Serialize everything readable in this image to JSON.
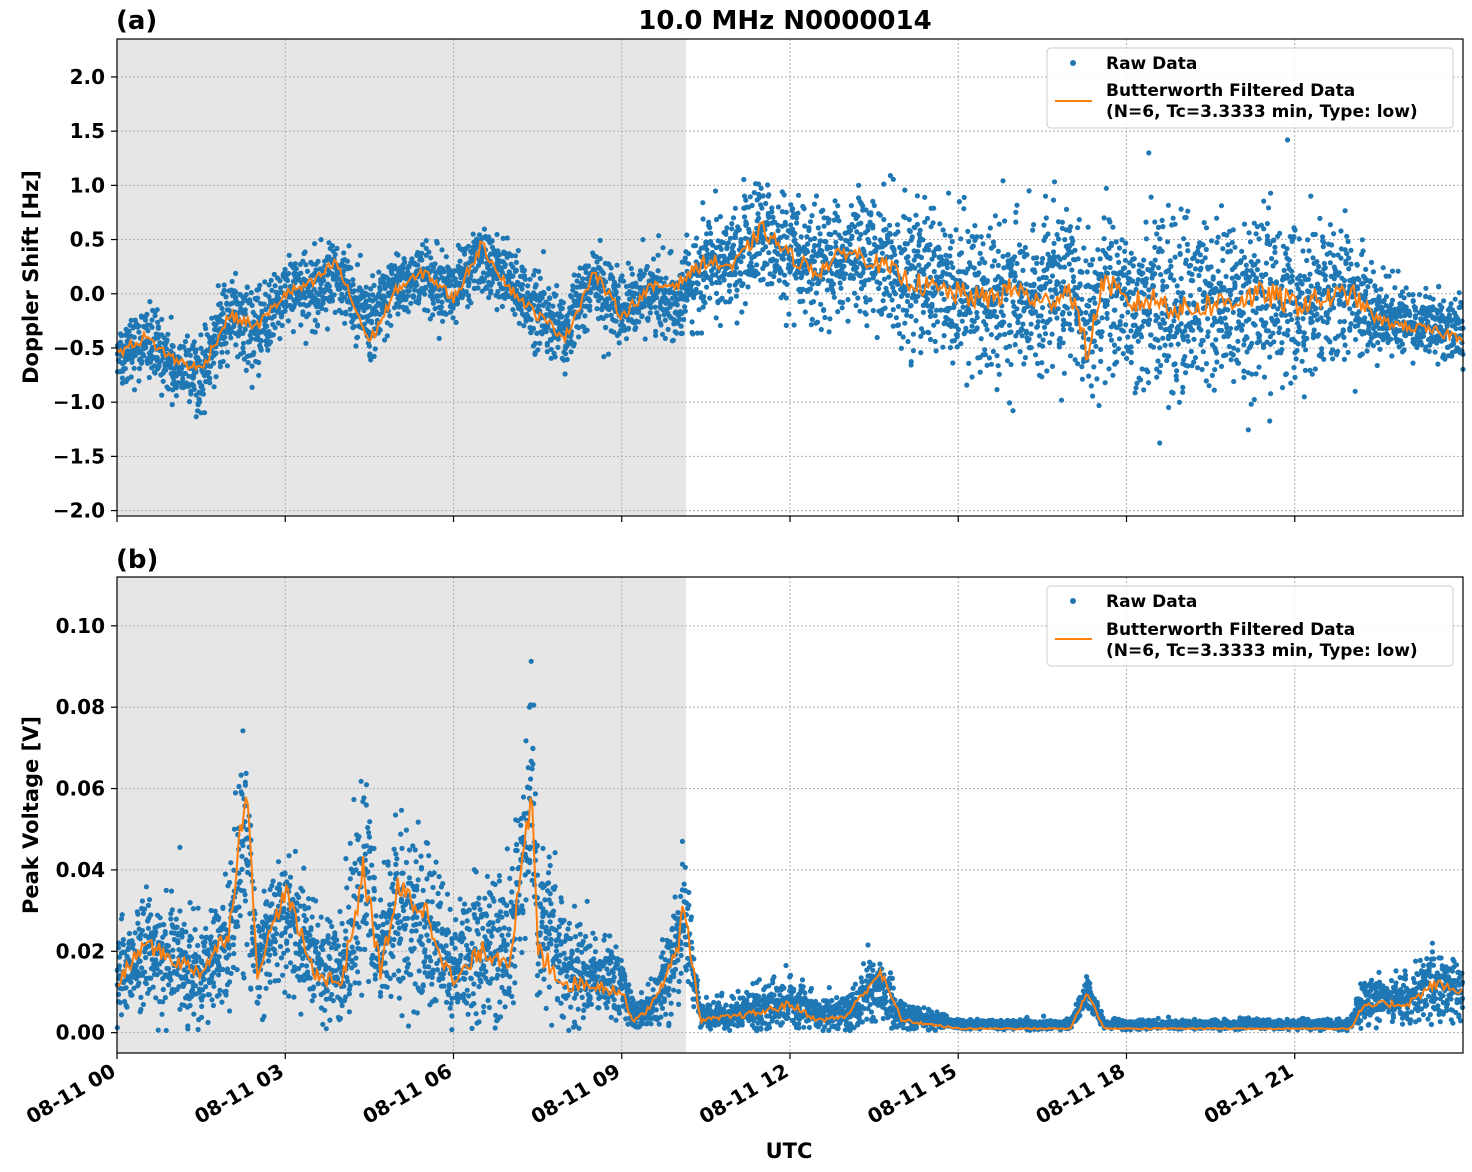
{
  "figure": {
    "title": "10.0 MHz N0000014",
    "xlabel": "UTC",
    "x_tick_labels": [
      "08-11 00",
      "08-11 03",
      "08-11 06",
      "08-11 09",
      "08-11 12",
      "08-11 15",
      "08-11 18",
      "08-11 21"
    ],
    "x_range_hours": [
      0,
      24
    ],
    "shaded_region_hours": [
      0,
      10.1
    ],
    "colors": {
      "raw": "#1f77b4",
      "filtered": "#ff7f0e",
      "shading": "#e6e6e6",
      "grid": "#b0b0b0"
    }
  },
  "chart_data": [
    {
      "type": "scatter",
      "panel_label": "(a)",
      "ylabel": "Doppler Shift [Hz]",
      "ylim": [
        -2.05,
        2.35
      ],
      "y_ticks": [
        -2.0,
        -1.5,
        -1.0,
        -0.5,
        0.0,
        0.5,
        1.0,
        1.5,
        2.0
      ],
      "y_tick_labels": [
        "−2.0",
        "−1.5",
        "−1.0",
        "−0.5",
        "0.0",
        "0.5",
        "1.0",
        "1.5",
        "2.0"
      ],
      "grid": true,
      "legend": {
        "placement": "top-right",
        "raw_label": "Raw Data",
        "filtered_label_1": "Butterworth Filtered Data",
        "filtered_label_2": "(N=6, Tc=3.3333 min, Type: low)"
      },
      "x_hours": [
        0,
        0.5,
        1,
        1.5,
        2,
        2.5,
        3,
        3.5,
        3.9,
        4.5,
        5,
        5.5,
        6,
        6.5,
        7,
        7.5,
        8,
        8.5,
        9,
        9.5,
        10,
        10.5,
        11,
        11.5,
        12,
        12.5,
        13,
        13.5,
        14,
        14.5,
        15,
        15.5,
        16,
        16.5,
        17,
        17.3,
        17.6,
        18,
        18.5,
        19,
        19.5,
        20,
        20.5,
        21,
        21.5,
        22,
        22.5,
        23,
        23.5,
        24
      ],
      "series": [
        {
          "name": "Raw Data",
          "style": "points",
          "center": [
            -0.55,
            -0.45,
            -0.65,
            -0.75,
            -0.15,
            -0.35,
            0.0,
            0.05,
            0.2,
            -0.3,
            0.1,
            0.15,
            0.0,
            0.35,
            0.1,
            -0.15,
            -0.35,
            0.15,
            -0.15,
            0.0,
            -0.05,
            0.25,
            0.3,
            0.6,
            0.3,
            0.25,
            0.35,
            0.35,
            0.2,
            0.1,
            0.0,
            -0.05,
            0.0,
            -0.05,
            0.05,
            -0.3,
            0.1,
            -0.1,
            -0.05,
            -0.15,
            -0.1,
            -0.1,
            0.0,
            -0.05,
            -0.05,
            0.0,
            -0.2,
            -0.25,
            -0.3,
            -0.35
          ],
          "spread": [
            0.3,
            0.3,
            0.3,
            0.3,
            0.3,
            0.3,
            0.3,
            0.3,
            0.3,
            0.3,
            0.3,
            0.3,
            0.3,
            0.3,
            0.3,
            0.3,
            0.3,
            0.3,
            0.3,
            0.3,
            0.3,
            0.4,
            0.45,
            0.45,
            0.45,
            0.45,
            0.45,
            0.5,
            0.55,
            0.6,
            0.65,
            0.65,
            0.65,
            0.65,
            0.65,
            0.65,
            0.65,
            0.65,
            0.7,
            0.7,
            0.7,
            0.7,
            0.7,
            0.7,
            0.65,
            0.6,
            0.3,
            0.3,
            0.3,
            0.3
          ]
        },
        {
          "name": "Butterworth Filtered Data",
          "style": "line",
          "values": [
            -0.55,
            -0.4,
            -0.6,
            -0.7,
            -0.2,
            -0.3,
            0.0,
            0.1,
            0.3,
            -0.45,
            0.05,
            0.2,
            -0.05,
            0.45,
            0.05,
            -0.2,
            -0.4,
            0.2,
            -0.2,
            0.05,
            0.1,
            0.3,
            0.25,
            0.6,
            0.35,
            0.2,
            0.4,
            0.3,
            0.15,
            0.05,
            0.0,
            -0.05,
            0.05,
            -0.1,
            0.05,
            -0.55,
            0.15,
            -0.1,
            -0.05,
            -0.15,
            -0.1,
            -0.05,
            0.0,
            -0.1,
            -0.05,
            0.0,
            -0.25,
            -0.3,
            -0.35,
            -0.4
          ]
        }
      ]
    },
    {
      "type": "scatter",
      "panel_label": "(b)",
      "ylabel": "Peak Voltage [V]",
      "ylim": [
        -0.005,
        0.112
      ],
      "y_ticks": [
        0.0,
        0.02,
        0.04,
        0.06,
        0.08,
        0.1
      ],
      "y_tick_labels": [
        "0.00",
        "0.02",
        "0.04",
        "0.06",
        "0.08",
        "0.10"
      ],
      "grid": true,
      "legend": {
        "placement": "top-right",
        "raw_label": "Raw Data",
        "filtered_label_1": "Butterworth Filtered Data",
        "filtered_label_2": "(N=6, Tc=3.3333 min, Type: low)"
      },
      "x_hours": [
        0,
        0.5,
        1,
        1.5,
        2,
        2.3,
        2.5,
        3,
        3.5,
        4,
        4.4,
        4.7,
        5,
        5.5,
        6,
        6.5,
        7,
        7.4,
        7.5,
        8,
        8.5,
        9,
        9.2,
        9.5,
        10,
        10.1,
        10.4,
        11,
        11.5,
        12,
        12.5,
        13,
        13.6,
        14,
        14.5,
        15,
        15.5,
        16,
        16.5,
        17,
        17.3,
        17.6,
        18,
        18.5,
        19,
        19.5,
        20,
        20.5,
        21,
        21.5,
        22,
        22.2,
        22.5,
        23,
        23.5,
        24
      ],
      "series": [
        {
          "name": "Raw Data",
          "style": "points",
          "center": [
            0.012,
            0.02,
            0.018,
            0.015,
            0.022,
            0.05,
            0.015,
            0.03,
            0.018,
            0.015,
            0.04,
            0.02,
            0.03,
            0.028,
            0.015,
            0.022,
            0.02,
            0.06,
            0.03,
            0.015,
            0.014,
            0.012,
            0.004,
            0.006,
            0.02,
            0.03,
            0.004,
            0.005,
            0.006,
            0.008,
            0.004,
            0.005,
            0.012,
            0.004,
            0.003,
            0.002,
            0.002,
            0.002,
            0.002,
            0.002,
            0.01,
            0.002,
            0.002,
            0.002,
            0.002,
            0.002,
            0.002,
            0.002,
            0.002,
            0.002,
            0.002,
            0.008,
            0.008,
            0.008,
            0.012,
            0.01
          ],
          "spread": [
            0.01,
            0.012,
            0.012,
            0.012,
            0.015,
            0.025,
            0.012,
            0.015,
            0.012,
            0.012,
            0.025,
            0.015,
            0.02,
            0.02,
            0.012,
            0.015,
            0.015,
            0.025,
            0.02,
            0.012,
            0.01,
            0.008,
            0.003,
            0.004,
            0.012,
            0.015,
            0.003,
            0.004,
            0.005,
            0.006,
            0.003,
            0.004,
            0.008,
            0.003,
            0.002,
            0.001,
            0.001,
            0.001,
            0.001,
            0.001,
            0.004,
            0.001,
            0.001,
            0.001,
            0.001,
            0.001,
            0.001,
            0.001,
            0.001,
            0.001,
            0.001,
            0.005,
            0.005,
            0.005,
            0.008,
            0.006
          ]
        },
        {
          "name": "Butterworth Filtered Data",
          "style": "line",
          "values": [
            0.012,
            0.022,
            0.018,
            0.015,
            0.025,
            0.062,
            0.015,
            0.035,
            0.015,
            0.012,
            0.04,
            0.015,
            0.035,
            0.03,
            0.012,
            0.02,
            0.018,
            0.058,
            0.02,
            0.012,
            0.012,
            0.01,
            0.003,
            0.006,
            0.02,
            0.033,
            0.003,
            0.004,
            0.005,
            0.007,
            0.003,
            0.004,
            0.015,
            0.003,
            0.002,
            0.001,
            0.001,
            0.001,
            0.001,
            0.001,
            0.01,
            0.001,
            0.001,
            0.001,
            0.001,
            0.001,
            0.001,
            0.001,
            0.001,
            0.001,
            0.001,
            0.006,
            0.007,
            0.007,
            0.012,
            0.01
          ]
        }
      ]
    }
  ]
}
